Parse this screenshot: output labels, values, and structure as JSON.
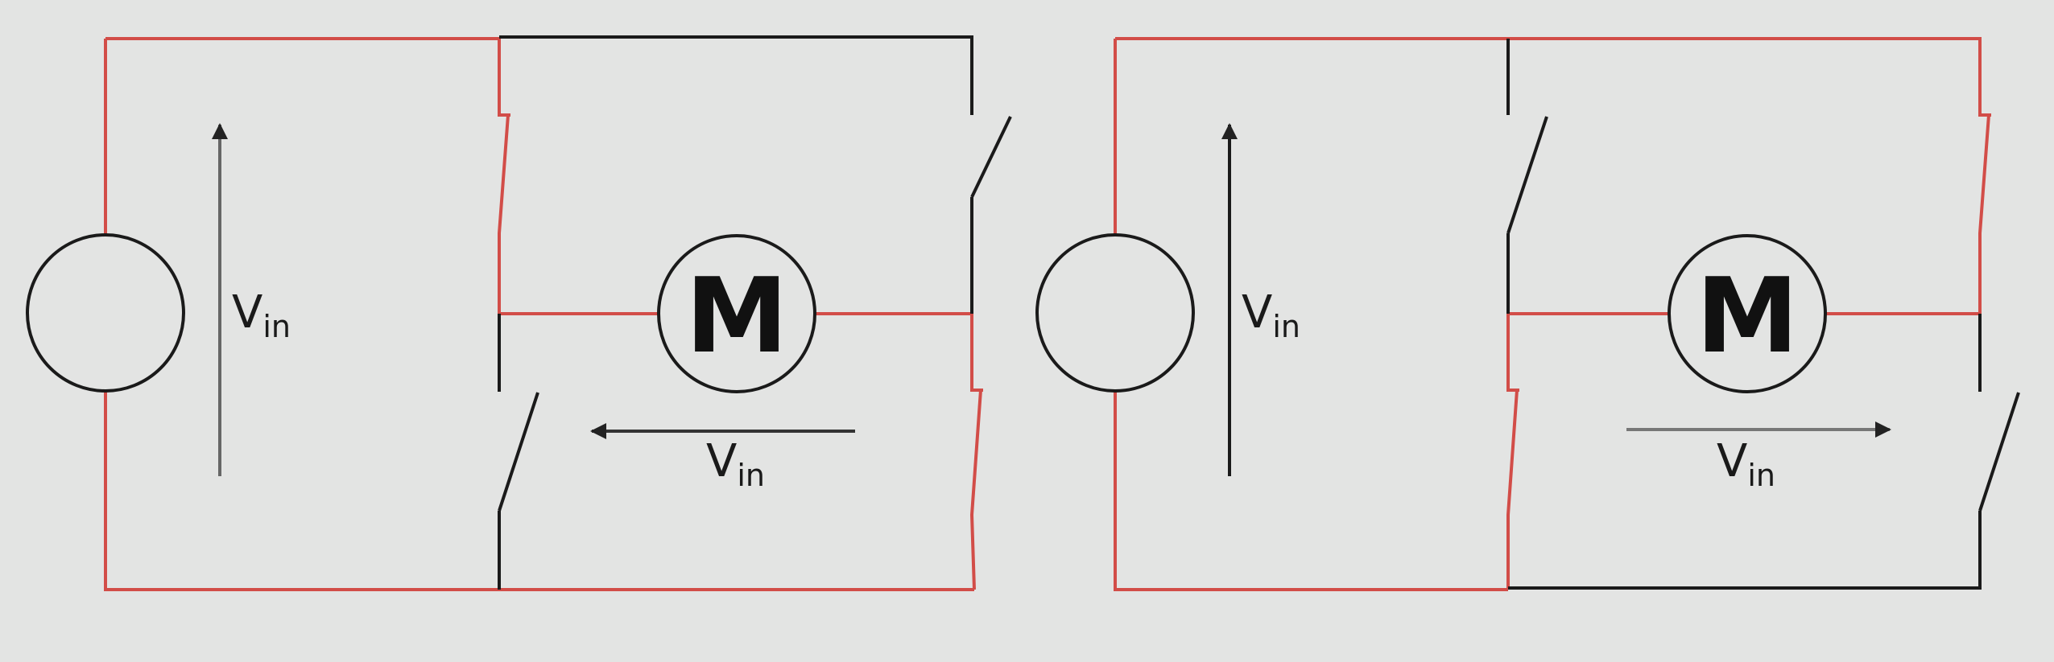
{
  "colors": {
    "background": "#e3e4e3",
    "active_path": "#d24d48",
    "inactive_wire": "#1a1a1a",
    "arrow": "#222222"
  },
  "circuits": [
    {
      "source_label": {
        "main": "V",
        "sub": "in"
      },
      "motor_label": "M",
      "motor_voltage_label": {
        "main": "V",
        "sub": "in"
      },
      "motor_current_direction": "right-to-left"
    },
    {
      "source_label": {
        "main": "V",
        "sub": "in"
      },
      "motor_label": "M",
      "motor_voltage_label": {
        "main": "V",
        "sub": "in"
      },
      "motor_current_direction": "left-to-right"
    }
  ]
}
